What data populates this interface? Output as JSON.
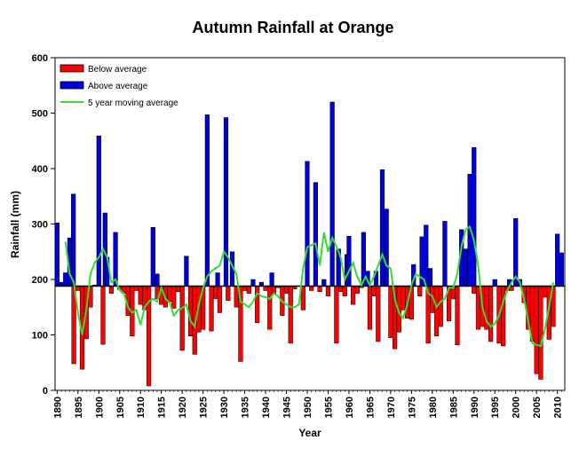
{
  "chart_data": {
    "type": "bar",
    "title": "Autumn Rainfall at Orange",
    "xlabel": "Year",
    "ylabel": "Rainfall (mm)",
    "ylim": [
      0,
      600
    ],
    "xlim": [
      1890,
      2011
    ],
    "y_ticks": [
      "0",
      "100",
      "200",
      "300",
      "400",
      "500",
      "600"
    ],
    "x_ticks": [
      "1890",
      "1895",
      "1900",
      "1905",
      "1910",
      "1915",
      "1920",
      "1925",
      "1930",
      "1935",
      "1940",
      "1945",
      "1950",
      "1955",
      "1960",
      "1965",
      "1970",
      "1975",
      "1980",
      "1985",
      "1990",
      "1995",
      "2000",
      "2005",
      "2010"
    ],
    "baseline": 188,
    "legend_position": "top-left",
    "colors": {
      "below": "#ff0000",
      "above": "#0000dd",
      "moving_average": "#33dd33"
    },
    "series": [
      {
        "name": "Below average",
        "kind": "bar",
        "points": [
          [
            1894,
            48
          ],
          [
            1895,
            180
          ],
          [
            1896,
            38
          ],
          [
            1897,
            93
          ],
          [
            1898,
            150
          ],
          [
            1901,
            83
          ],
          [
            1903,
            175
          ],
          [
            1905,
            182
          ],
          [
            1906,
            175
          ],
          [
            1907,
            135
          ],
          [
            1908,
            98
          ],
          [
            1909,
            180
          ],
          [
            1910,
            155
          ],
          [
            1911,
            145
          ],
          [
            1912,
            8
          ],
          [
            1914,
            165
          ],
          [
            1915,
            155
          ],
          [
            1916,
            150
          ],
          [
            1917,
            160
          ],
          [
            1918,
            148
          ],
          [
            1919,
            178
          ],
          [
            1920,
            72
          ],
          [
            1922,
            98
          ],
          [
            1923,
            65
          ],
          [
            1924,
            105
          ],
          [
            1925,
            110
          ],
          [
            1927,
            107
          ],
          [
            1928,
            165
          ],
          [
            1929,
            140
          ],
          [
            1931,
            162
          ],
          [
            1933,
            150
          ],
          [
            1934,
            52
          ],
          [
            1935,
            180
          ],
          [
            1936,
            175
          ],
          [
            1938,
            122
          ],
          [
            1940,
            180
          ],
          [
            1941,
            110
          ],
          [
            1942,
            175
          ],
          [
            1943,
            185
          ],
          [
            1944,
            135
          ],
          [
            1945,
            175
          ],
          [
            1946,
            85
          ],
          [
            1947,
            183
          ],
          [
            1949,
            145
          ],
          [
            1951,
            180
          ],
          [
            1953,
            178
          ],
          [
            1955,
            170
          ],
          [
            1957,
            85
          ],
          [
            1958,
            178
          ],
          [
            1959,
            170
          ],
          [
            1961,
            155
          ],
          [
            1962,
            175
          ],
          [
            1963,
            185
          ],
          [
            1965,
            110
          ],
          [
            1966,
            170
          ],
          [
            1967,
            88
          ],
          [
            1970,
            95
          ],
          [
            1971,
            75
          ],
          [
            1972,
            105
          ],
          [
            1973,
            145
          ],
          [
            1974,
            130
          ],
          [
            1975,
            128
          ],
          [
            1977,
            170
          ],
          [
            1979,
            85
          ],
          [
            1980,
            140
          ],
          [
            1981,
            98
          ],
          [
            1982,
            115
          ],
          [
            1984,
            125
          ],
          [
            1985,
            165
          ],
          [
            1986,
            82
          ],
          [
            1990,
            175
          ],
          [
            1991,
            110
          ],
          [
            1992,
            115
          ],
          [
            1993,
            110
          ],
          [
            1994,
            88
          ],
          [
            1996,
            85
          ],
          [
            1997,
            80
          ],
          [
            1998,
            180
          ],
          [
            1999,
            180
          ],
          [
            2002,
            158
          ],
          [
            2003,
            110
          ],
          [
            2004,
            88
          ],
          [
            2005,
            30
          ],
          [
            2006,
            20
          ],
          [
            2007,
            168
          ],
          [
            2008,
            92
          ],
          [
            2009,
            115
          ]
        ]
      },
      {
        "name": "Above average",
        "kind": "bar",
        "points": [
          [
            1890,
            302
          ],
          [
            1891,
            195
          ],
          [
            1892,
            212
          ],
          [
            1893,
            275
          ],
          [
            1893.9,
            354
          ],
          [
            1899,
            190
          ],
          [
            1900,
            459
          ],
          [
            1901.5,
            320
          ],
          [
            1902,
            240
          ],
          [
            1904,
            285
          ],
          [
            1913,
            294
          ],
          [
            1914,
            210
          ],
          [
            1921,
            242
          ],
          [
            1926,
            497
          ],
          [
            1928.5,
            212
          ],
          [
            1930.5,
            492
          ],
          [
            1932,
            250
          ],
          [
            1937,
            200
          ],
          [
            1939,
            195
          ],
          [
            1941.5,
            212
          ],
          [
            1950,
            413
          ],
          [
            1952,
            375
          ],
          [
            1954,
            200
          ],
          [
            1956,
            520
          ],
          [
            1957.5,
            255
          ],
          [
            1959.5,
            245
          ],
          [
            1960,
            278
          ],
          [
            1963.5,
            285
          ],
          [
            1964.5,
            215
          ],
          [
            1966.5,
            215
          ],
          [
            1968,
            398
          ],
          [
            1969,
            327
          ],
          [
            1975.5,
            227
          ],
          [
            1977.5,
            277
          ],
          [
            1978.5,
            298
          ],
          [
            1979.5,
            220
          ],
          [
            1983,
            305
          ],
          [
            1987,
            290
          ],
          [
            1988,
            255
          ],
          [
            1989,
            390
          ],
          [
            1990,
            438
          ],
          [
            1995,
            200
          ],
          [
            1998.5,
            200
          ],
          [
            2000,
            310
          ],
          [
            2001,
            200
          ],
          [
            2010,
            282
          ],
          [
            2010.5,
            240
          ],
          [
            2011,
            248
          ]
        ]
      },
      {
        "name": "5 year moving average",
        "kind": "line",
        "points": [
          [
            1892,
            268
          ],
          [
            1893,
            210
          ],
          [
            1894,
            195
          ],
          [
            1895,
            140
          ],
          [
            1896,
            100
          ],
          [
            1897,
            145
          ],
          [
            1898,
            210
          ],
          [
            1899,
            230
          ],
          [
            1900,
            240
          ],
          [
            1901,
            255
          ],
          [
            1902,
            240
          ],
          [
            1903,
            195
          ],
          [
            1904,
            200
          ],
          [
            1905,
            180
          ],
          [
            1906,
            175
          ],
          [
            1907,
            150
          ],
          [
            1908,
            140
          ],
          [
            1909,
            145
          ],
          [
            1910,
            118
          ],
          [
            1911,
            150
          ],
          [
            1912,
            160
          ],
          [
            1913,
            165
          ],
          [
            1914,
            160
          ],
          [
            1915,
            185
          ],
          [
            1916,
            165
          ],
          [
            1917,
            158
          ],
          [
            1918,
            135
          ],
          [
            1919,
            145
          ],
          [
            1920,
            148
          ],
          [
            1921,
            155
          ],
          [
            1922,
            125
          ],
          [
            1923,
            115
          ],
          [
            1924,
            155
          ],
          [
            1925,
            185
          ],
          [
            1926,
            205
          ],
          [
            1927,
            215
          ],
          [
            1928,
            220
          ],
          [
            1929,
            225
          ],
          [
            1930,
            250
          ],
          [
            1931,
            240
          ],
          [
            1932,
            225
          ],
          [
            1933,
            210
          ],
          [
            1934,
            160
          ],
          [
            1935,
            155
          ],
          [
            1936,
            150
          ],
          [
            1937,
            160
          ],
          [
            1938,
            175
          ],
          [
            1939,
            170
          ],
          [
            1940,
            168
          ],
          [
            1941,
            165
          ],
          [
            1942,
            175
          ],
          [
            1943,
            170
          ],
          [
            1944,
            160
          ],
          [
            1945,
            155
          ],
          [
            1946,
            150
          ],
          [
            1947,
            150
          ],
          [
            1948,
            155
          ],
          [
            1949,
            220
          ],
          [
            1950,
            258
          ],
          [
            1951,
            262
          ],
          [
            1952,
            265
          ],
          [
            1953,
            225
          ],
          [
            1954,
            285
          ],
          [
            1955,
            250
          ],
          [
            1956,
            275
          ],
          [
            1957,
            260
          ],
          [
            1958,
            240
          ],
          [
            1959,
            200
          ],
          [
            1960,
            215
          ],
          [
            1961,
            230
          ],
          [
            1962,
            205
          ],
          [
            1963,
            190
          ],
          [
            1964,
            205
          ],
          [
            1965,
            190
          ],
          [
            1966,
            205
          ],
          [
            1967,
            225
          ],
          [
            1968,
            245
          ],
          [
            1969,
            225
          ],
          [
            1970,
            220
          ],
          [
            1971,
            165
          ],
          [
            1972,
            140
          ],
          [
            1973,
            130
          ],
          [
            1974,
            155
          ],
          [
            1975,
            190
          ],
          [
            1976,
            210
          ],
          [
            1977,
            205
          ],
          [
            1978,
            200
          ],
          [
            1979,
            175
          ],
          [
            1980,
            170
          ],
          [
            1981,
            150
          ],
          [
            1982,
            160
          ],
          [
            1983,
            165
          ],
          [
            1984,
            185
          ],
          [
            1985,
            185
          ],
          [
            1986,
            210
          ],
          [
            1987,
            260
          ],
          [
            1988,
            290
          ],
          [
            1989,
            295
          ],
          [
            1990,
            270
          ],
          [
            1991,
            225
          ],
          [
            1992,
            150
          ],
          [
            1993,
            125
          ],
          [
            1994,
            115
          ],
          [
            1995,
            120
          ],
          [
            1996,
            135
          ],
          [
            1997,
            160
          ],
          [
            1998,
            180
          ],
          [
            1999,
            195
          ],
          [
            2000,
            205
          ],
          [
            2001,
            195
          ],
          [
            2002,
            165
          ],
          [
            2003,
            125
          ],
          [
            2004,
            85
          ],
          [
            2005,
            82
          ],
          [
            2006,
            80
          ],
          [
            2007,
            110
          ],
          [
            2008,
            150
          ],
          [
            2009,
            195
          ]
        ]
      }
    ]
  }
}
